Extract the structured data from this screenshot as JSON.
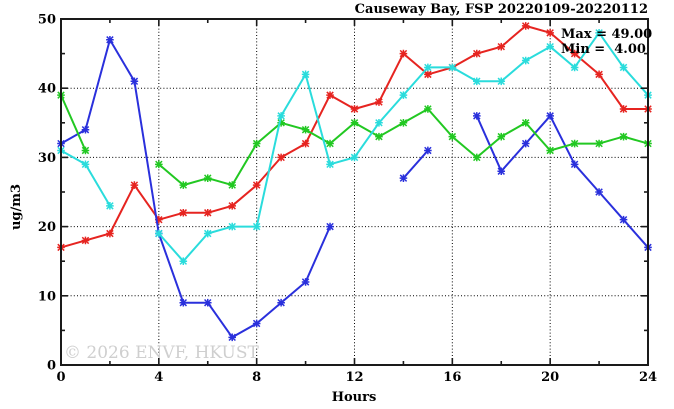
{
  "title": "Causeway Bay, FSP 20220109-20220112",
  "legend": {
    "max_label": "Max = 49.00",
    "min_label": "Min =  4.00"
  },
  "watermark": "© 2026 ENVF, HKUST",
  "chart_data": {
    "type": "line",
    "title": "Causeway Bay, FSP 20220109-20220112",
    "xlabel": "Hours",
    "ylabel": "ug/m3",
    "xlim": [
      0,
      24
    ],
    "ylim": [
      0,
      50
    ],
    "xticks_major": [
      0,
      4,
      8,
      12,
      16,
      20,
      24
    ],
    "xtick_minor_step": 2,
    "yticks_major": [
      0,
      10,
      20,
      30,
      40,
      50
    ],
    "ytick_minor_step": 5,
    "grid": "dotted",
    "x": [
      0,
      1,
      2,
      3,
      4,
      5,
      6,
      7,
      8,
      9,
      10,
      11,
      12,
      13,
      14,
      15,
      16,
      17,
      18,
      19,
      20,
      21,
      22,
      23,
      24
    ],
    "series": [
      {
        "name": "series-red",
        "color": "#e62420",
        "values": [
          17,
          18,
          19,
          26,
          21,
          22,
          22,
          23,
          26,
          30,
          32,
          39,
          37,
          38,
          45,
          42,
          43,
          45,
          46,
          49,
          48,
          45,
          42,
          37,
          37
        ]
      },
      {
        "name": "series-blue",
        "color": "#2a30dc",
        "values": [
          32,
          34,
          47,
          41,
          19,
          9,
          9,
          4,
          6,
          9,
          12,
          20,
          null,
          null,
          27,
          31,
          null,
          36,
          28,
          32,
          36,
          29,
          25,
          21,
          17
        ]
      },
      {
        "name": "series-green",
        "color": "#22c822",
        "values": [
          39,
          31,
          null,
          null,
          29,
          26,
          27,
          26,
          32,
          35,
          34,
          32,
          35,
          33,
          35,
          37,
          33,
          30,
          33,
          35,
          31,
          32,
          32,
          33,
          32
        ]
      },
      {
        "name": "series-cyan",
        "color": "#2adcdc",
        "values": [
          31,
          29,
          23,
          null,
          19,
          15,
          19,
          20,
          20,
          36,
          42,
          29,
          30,
          35,
          39,
          43,
          43,
          41,
          41,
          44,
          46,
          43,
          48,
          43,
          39
        ]
      }
    ],
    "max": 49.0,
    "min": 4.0
  }
}
